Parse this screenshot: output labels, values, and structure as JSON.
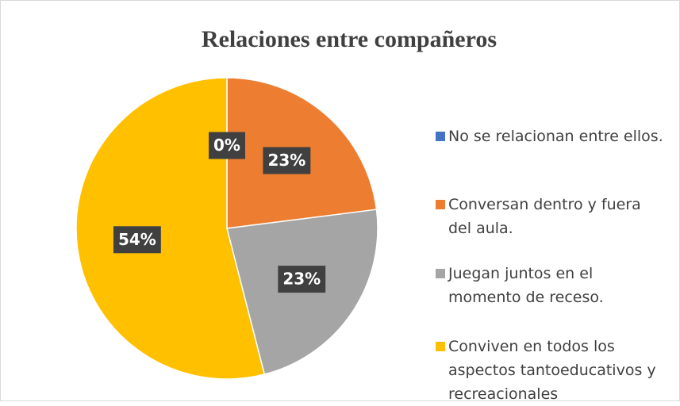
{
  "chart_data": {
    "type": "pie",
    "title": "Relaciones entre compañeros",
    "categories": [
      "No se relacionan entre ellos.",
      "Conversan dentro y fuera del aula.",
      "Juegan juntos en el momento de receso.",
      "Conviven en todos los aspectos tantoeducativos y recreacionales"
    ],
    "values": [
      0,
      23,
      23,
      54
    ],
    "value_labels": [
      "0%",
      "23%",
      "23%",
      "54%"
    ],
    "colors": [
      "#4472c4",
      "#ed7d31",
      "#a5a5a5",
      "#ffc000"
    ],
    "legend": "right"
  }
}
